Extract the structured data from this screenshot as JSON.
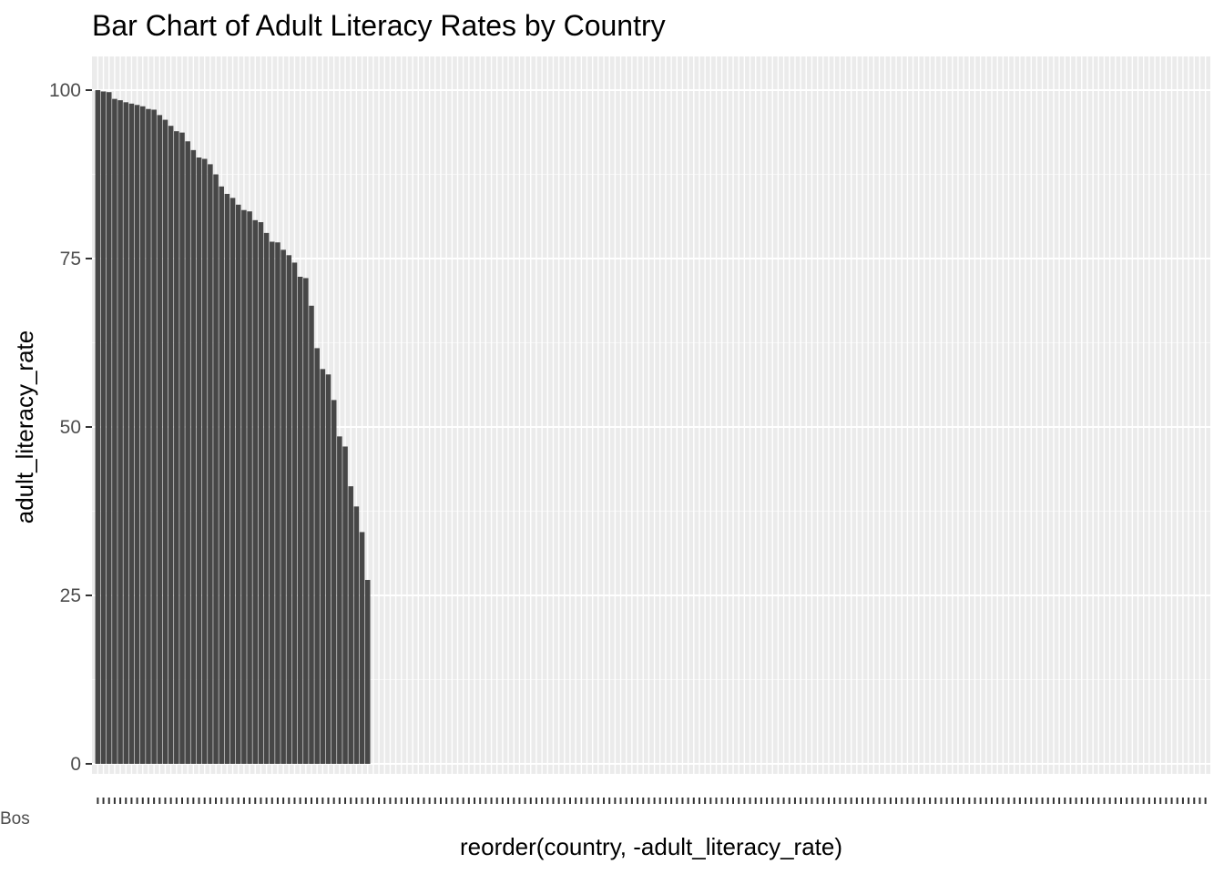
{
  "chart_data": {
    "type": "bar",
    "title": "Bar Chart of Adult Literacy Rates by Country",
    "xlabel": "reorder(country, -adult_literacy_rate)",
    "ylabel": "adult_literacy_rate",
    "ylim": [
      0,
      105
    ],
    "yticks": [
      0,
      25,
      50,
      75,
      100
    ],
    "grid": true,
    "n_categories": 198,
    "bar_color": "#474747",
    "panel_color": "#ebebeb",
    "visible_category_labels": [
      "Bos"
    ],
    "values": [
      100,
      99.8,
      99.7,
      98.7,
      98.5,
      98.2,
      98.0,
      97.8,
      97.6,
      97.2,
      97.1,
      96.3,
      95.6,
      94.7,
      93.9,
      93.7,
      92.4,
      91.1,
      90.0,
      89.8,
      89.0,
      87.5,
      85.7,
      84.6,
      84.0,
      83.0,
      82.2,
      82.0,
      80.7,
      80.4,
      78.8,
      77.5,
      77.4,
      76.3,
      75.5,
      74.4,
      72.3,
      72.1,
      68.0,
      61.7,
      58.6,
      57.8,
      54.0,
      48.6,
      47.1,
      41.2,
      38.2,
      34.4,
      27.3
    ]
  }
}
